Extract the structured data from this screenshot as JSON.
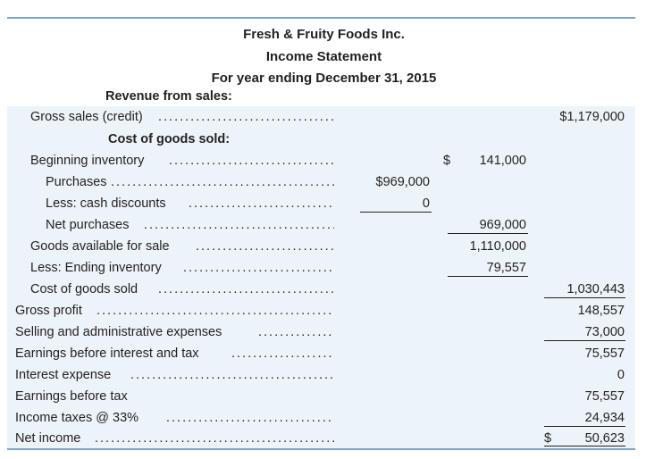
{
  "header": {
    "company": "Fresh & Fruity Foods Inc.",
    "title": "Income Statement",
    "period": "For year ending December 31, 2015"
  },
  "sections": {
    "revenue_heading": "Revenue from sales:",
    "cogs_heading": "Cost of goods sold:"
  },
  "rows": {
    "gross_sales": {
      "label": "Gross sales (credit)",
      "col3": "$1,179,000"
    },
    "beginning_inventory": {
      "label": "Beginning inventory",
      "col2_dollar": "$",
      "col2": "141,000"
    },
    "purchases": {
      "label": "Purchases",
      "col1": "$969,000"
    },
    "cash_discounts": {
      "label": "Less: cash discounts",
      "col1": "0"
    },
    "net_purchases": {
      "label": "Net purchases",
      "col2": "969,000"
    },
    "goods_available": {
      "label": "Goods available for sale",
      "col2": "1,110,000"
    },
    "ending_inventory": {
      "label": "Less: Ending inventory",
      "col2": "79,557"
    },
    "cost_of_goods_sold": {
      "label": "Cost of goods sold",
      "col3": "1,030,443"
    },
    "gross_profit": {
      "label": "Gross profit",
      "col3": "148,557"
    },
    "sga": {
      "label": "Selling and administrative expenses",
      "col3": "73,000"
    },
    "ebit": {
      "label": "Earnings before interest and tax",
      "col3": "75,557"
    },
    "interest": {
      "label": "Interest expense",
      "col3": "0"
    },
    "ebt": {
      "label": "Earnings before tax",
      "col3": "75,557"
    },
    "taxes": {
      "label": "Income taxes @ 33%",
      "col3": "24,934"
    },
    "net_income": {
      "label": "Net income",
      "col3_dollar": "$",
      "col3": "50,623"
    }
  },
  "colors": {
    "rule": "#7aa6cd",
    "band": "#ecf4f9",
    "text": "#231f20"
  }
}
